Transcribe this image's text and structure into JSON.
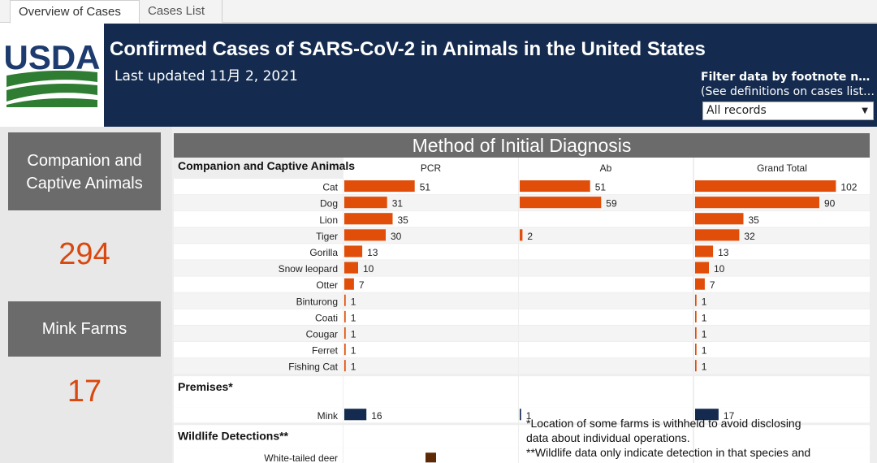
{
  "tabs": [
    {
      "label": "Overview of Cases",
      "active": true
    },
    {
      "label": "Cases List",
      "active": false
    }
  ],
  "header": {
    "logo_text": "USDA",
    "title": "Confirmed Cases of SARS-CoV-2 in Animals in the United States",
    "updated": "Last updated 11月 2, 2021",
    "filter_label": "Filter data by footnote number",
    "filter_sub": "(See definitions on cases list tab)",
    "filter_value": "All records"
  },
  "kpis": {
    "companion_label": "Companion and Captive Animals",
    "companion_value": "294",
    "mink_label": "Mink Farms",
    "mink_value": "17"
  },
  "notes": {
    "line1": "*Location of some farms is withheld to avoid disclosing",
    "line2": "data about individual operations.",
    "line3": "**Wildlife data only indicate detection in that species and"
  },
  "colors": {
    "orange": "#e04e0a",
    "navy": "#142b4f",
    "brown": "#5e2a06",
    "kpi_value": "#d9480f"
  },
  "chart_data": {
    "type": "bar",
    "title": "Method of Initial Diagnosis",
    "columns": [
      "PCR",
      "Ab",
      "Grand Total"
    ],
    "sections": [
      {
        "header": "Companion and Captive Animals",
        "rows": [
          {
            "label": "Cat",
            "values": [
              51,
              51,
              102
            ]
          },
          {
            "label": "Dog",
            "values": [
              31,
              59,
              90
            ]
          },
          {
            "label": "Lion",
            "values": [
              35,
              null,
              35
            ]
          },
          {
            "label": "Tiger",
            "values": [
              30,
              2,
              32
            ]
          },
          {
            "label": "Gorilla",
            "values": [
              13,
              null,
              13
            ]
          },
          {
            "label": "Snow leopard",
            "values": [
              10,
              null,
              10
            ]
          },
          {
            "label": "Otter",
            "values": [
              7,
              null,
              7
            ]
          },
          {
            "label": "Binturong",
            "values": [
              1,
              null,
              1
            ]
          },
          {
            "label": "Coati",
            "values": [
              1,
              null,
              1
            ]
          },
          {
            "label": "Cougar",
            "values": [
              1,
              null,
              1
            ]
          },
          {
            "label": "Ferret",
            "values": [
              1,
              null,
              1
            ]
          },
          {
            "label": "Fishing Cat",
            "values": [
              1,
              null,
              1
            ]
          }
        ]
      },
      {
        "header": "Premises*",
        "rows": [
          {
            "label": "Mink",
            "values": [
              16,
              1,
              17
            ]
          }
        ]
      },
      {
        "header": "Wildlife Detections**",
        "rows": [
          {
            "label": "White-tailed deer",
            "values": [
              null,
              null,
              null
            ]
          }
        ]
      }
    ]
  }
}
